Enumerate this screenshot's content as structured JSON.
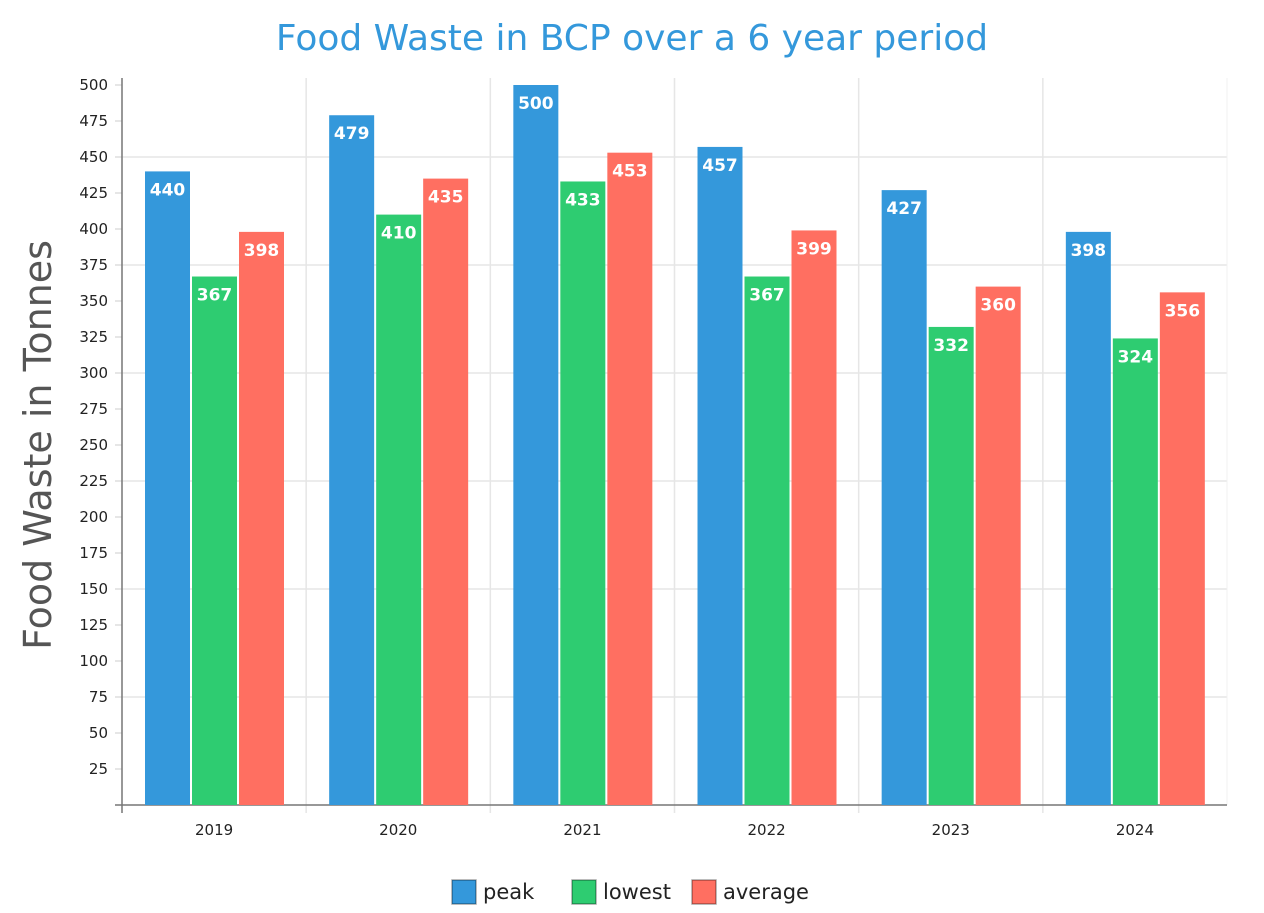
{
  "chart_data": {
    "type": "bar",
    "title": "Food Waste in BCP over a 6 year period",
    "xlabel": "",
    "ylabel": "Food Waste in Tonnes",
    "ylim": [
      0,
      500
    ],
    "ytick_step": 25,
    "grid_step": 75,
    "grid": true,
    "legend_position": "bottom",
    "categories": [
      "2019",
      "2020",
      "2021",
      "2022",
      "2023",
      "2024"
    ],
    "series": [
      {
        "name": "peak",
        "color": "#3498db",
        "values": [
          440,
          479,
          500,
          457,
          427,
          398
        ]
      },
      {
        "name": "lowest",
        "color": "#2ecc71",
        "values": [
          367,
          410,
          433,
          367,
          332,
          324
        ]
      },
      {
        "name": "average",
        "color": "#ff6f61",
        "values": [
          398,
          435,
          453,
          399,
          360,
          356
        ]
      }
    ]
  }
}
